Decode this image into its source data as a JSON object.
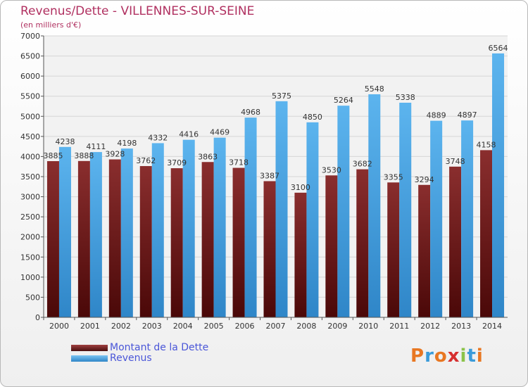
{
  "chart_data": {
    "type": "bar",
    "title": "Revenus/Dette - VILLENNES-SUR-SEINE",
    "subtitle": "(en milliers d'€)",
    "categories": [
      "2000",
      "2001",
      "2002",
      "2003",
      "2004",
      "2005",
      "2006",
      "2007",
      "2008",
      "2009",
      "2010",
      "2011",
      "2012",
      "2013",
      "2014"
    ],
    "series": [
      {
        "name": "Montant de la Dette",
        "color": "#7a1f1f",
        "values": [
          3885,
          3888,
          3928,
          3762,
          3709,
          3863,
          3718,
          3387,
          3100,
          3530,
          3682,
          3355,
          3294,
          3748,
          4158
        ],
        "labels": [
          "3885",
          "3888",
          "3928",
          "3762",
          "3709",
          "3863",
          "3718",
          "3387",
          "3100",
          "3530",
          "3682",
          "3355",
          "3294",
          "3748",
          "4158"
        ]
      },
      {
        "name": "Revenus",
        "color": "#4aa8e8",
        "values": [
          4238,
          4111,
          4198,
          4332,
          4416,
          4469,
          4968,
          5375,
          4850,
          5264,
          5548,
          5338,
          4889,
          4897,
          6564
        ],
        "labels": [
          "4238",
          "4111",
          "4198",
          "4332",
          "4416",
          "4469",
          "4968",
          "5375",
          "4850",
          "5264",
          "5548",
          "5338",
          "4889",
          "4897",
          "6564"
        ]
      }
    ],
    "ylim": [
      0,
      7000
    ],
    "yticks": [
      0,
      500,
      1000,
      1500,
      2000,
      2500,
      3000,
      3500,
      4000,
      4500,
      5000,
      5500,
      6000,
      6500,
      7000
    ],
    "grid": true,
    "legend": "bottom-left"
  },
  "branding": {
    "text": "Proxiti",
    "colors": [
      "#e87722",
      "#3a9bd9",
      "#e87722",
      "#d62f2f",
      "#8bc34a",
      "#3a9bd9",
      "#e87722"
    ]
  }
}
